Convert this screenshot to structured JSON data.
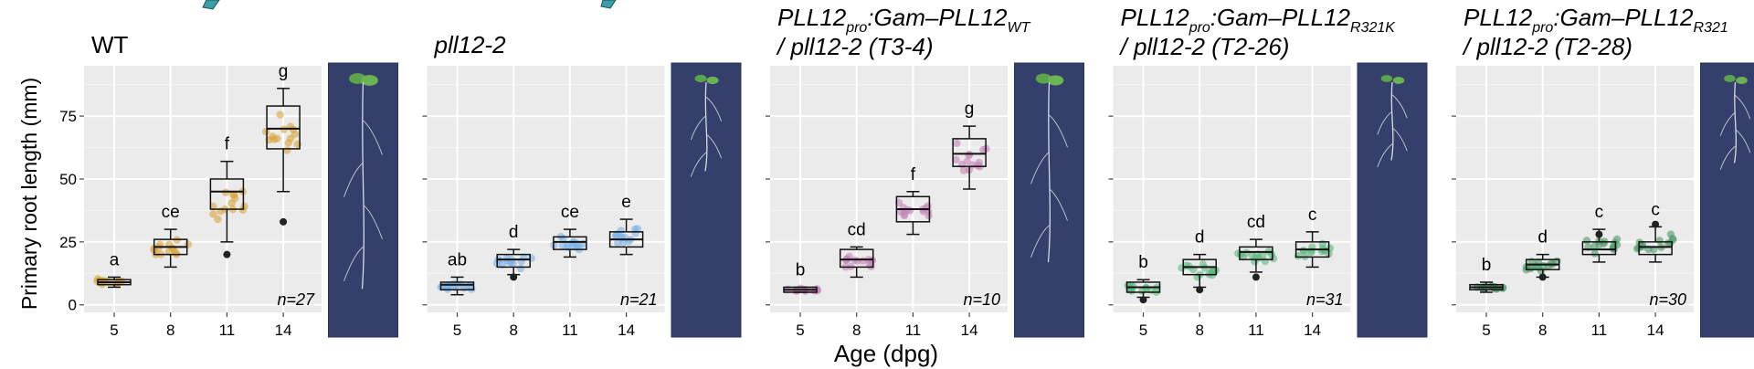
{
  "figure": {
    "y_axis_title": "Primary root length (mm)",
    "x_axis_title": "Age (dpg)"
  },
  "chart_data": [
    {
      "type": "box",
      "title_lines": [
        [
          {
            "t": "WT"
          }
        ]
      ],
      "categories": [
        "5",
        "8",
        "11",
        "14"
      ],
      "ylim": [
        -3,
        95
      ],
      "yticks": [
        "0",
        "25",
        "50",
        "75"
      ],
      "color": "#D9A53A",
      "boxes": [
        {
          "q1": 8,
          "med": 9,
          "q3": 10,
          "wlo": 7,
          "whi": 11,
          "letter": "a"
        },
        {
          "q1": 20,
          "med": 23,
          "q3": 26,
          "wlo": 15,
          "whi": 30,
          "letter": "ce"
        },
        {
          "q1": 38,
          "med": 45,
          "q3": 50,
          "wlo": 25,
          "whi": 57,
          "letter": "f"
        },
        {
          "q1": 62,
          "med": 70,
          "q3": 79,
          "wlo": 45,
          "whi": 86,
          "letter": "g"
        }
      ],
      "outliers": [
        [
          2,
          20
        ],
        [
          3,
          33
        ]
      ],
      "n_label": "n=27",
      "has_ylabels": true
    },
    {
      "type": "box",
      "title_lines": [
        [
          {
            "t": "pll12-2",
            "i": true
          }
        ]
      ],
      "categories": [
        "5",
        "8",
        "11",
        "14"
      ],
      "ylim": [
        -3,
        95
      ],
      "yticks": [
        "0",
        "25",
        "50",
        "75"
      ],
      "color": "#7FB2E5",
      "boxes": [
        {
          "q1": 6,
          "med": 8,
          "q3": 9,
          "wlo": 4,
          "whi": 11,
          "letter": "ab"
        },
        {
          "q1": 15,
          "med": 18,
          "q3": 20,
          "wlo": 12,
          "whi": 22,
          "letter": "d"
        },
        {
          "q1": 22,
          "med": 25,
          "q3": 27,
          "wlo": 19,
          "whi": 30,
          "letter": "ce"
        },
        {
          "q1": 23,
          "med": 26,
          "q3": 29,
          "wlo": 20,
          "whi": 34,
          "letter": "e"
        }
      ],
      "outliers": [
        [
          1,
          11
        ]
      ],
      "n_label": "n=21",
      "has_ylabels": false
    },
    {
      "type": "box",
      "title_lines": [
        [
          {
            "t": "PLL12",
            "i": true
          },
          {
            "t": "pro",
            "i": true,
            "sub": true
          },
          {
            "t": ":Gam–PLL12",
            "i": true
          },
          {
            "t": "WT",
            "i": true,
            "sub": true
          }
        ],
        [
          {
            "t": "/ pll12-2 (T3-4)",
            "i": true
          }
        ]
      ],
      "categories": [
        "5",
        "8",
        "11",
        "14"
      ],
      "ylim": [
        -3,
        95
      ],
      "yticks": [
        "0",
        "25",
        "50",
        "75"
      ],
      "color": "#C785B8",
      "boxes": [
        {
          "q1": 5,
          "med": 6,
          "q3": 7,
          "wlo": 5,
          "whi": 7,
          "letter": "b"
        },
        {
          "q1": 15,
          "med": 18,
          "q3": 22,
          "wlo": 11,
          "whi": 23,
          "letter": "cd"
        },
        {
          "q1": 33,
          "med": 38,
          "q3": 43,
          "wlo": 28,
          "whi": 45,
          "letter": "f"
        },
        {
          "q1": 55,
          "med": 60,
          "q3": 66,
          "wlo": 46,
          "whi": 71,
          "letter": "g"
        }
      ],
      "outliers": [],
      "n_label": "n=10",
      "has_ylabels": false
    },
    {
      "type": "box",
      "title_lines": [
        [
          {
            "t": "PLL12",
            "i": true
          },
          {
            "t": "pro",
            "i": true,
            "sub": true
          },
          {
            "t": ":Gam–PLL12",
            "i": true
          },
          {
            "t": "R321K",
            "i": true,
            "sub": true
          }
        ],
        [
          {
            "t": "/ pll12-2 (T2-26)",
            "i": true
          }
        ]
      ],
      "categories": [
        "5",
        "8",
        "11",
        "14"
      ],
      "ylim": [
        -3,
        95
      ],
      "yticks": [
        "0",
        "25",
        "50",
        "75"
      ],
      "color": "#5DB87E",
      "boxes": [
        {
          "q1": 5,
          "med": 7,
          "q3": 9,
          "wlo": 3,
          "whi": 10,
          "letter": "b"
        },
        {
          "q1": 12,
          "med": 15,
          "q3": 18,
          "wlo": 7,
          "whi": 20,
          "letter": "d"
        },
        {
          "q1": 18,
          "med": 21,
          "q3": 23,
          "wlo": 13,
          "whi": 26,
          "letter": "cd"
        },
        {
          "q1": 19,
          "med": 22,
          "q3": 25,
          "wlo": 15,
          "whi": 29,
          "letter": "c"
        }
      ],
      "outliers": [
        [
          0,
          2
        ],
        [
          1,
          6
        ],
        [
          2,
          11
        ]
      ],
      "n_label": "n=31",
      "has_ylabels": false
    },
    {
      "type": "box",
      "title_lines": [
        [
          {
            "t": "PLL12",
            "i": true
          },
          {
            "t": "pro",
            "i": true,
            "sub": true
          },
          {
            "t": ":Gam–PLL12",
            "i": true
          },
          {
            "t": "R321",
            "i": true,
            "sub": true
          }
        ],
        [
          {
            "t": "/ pll12-2 (T2-28)",
            "i": true
          }
        ]
      ],
      "categories": [
        "5",
        "8",
        "11",
        "14"
      ],
      "ylim": [
        -3,
        95
      ],
      "yticks": [
        "0",
        "25",
        "50",
        "75"
      ],
      "color": "#4E9A68",
      "boxes": [
        {
          "q1": 6,
          "med": 7,
          "q3": 8,
          "wlo": 5,
          "whi": 9,
          "letter": "b"
        },
        {
          "q1": 14,
          "med": 16,
          "q3": 18,
          "wlo": 11,
          "whi": 20,
          "letter": "d"
        },
        {
          "q1": 20,
          "med": 22,
          "q3": 25,
          "wlo": 17,
          "whi": 30,
          "letter": "c"
        },
        {
          "q1": 20,
          "med": 23,
          "q3": 25,
          "wlo": 17,
          "whi": 31,
          "letter": "c"
        }
      ],
      "outliers": [
        [
          1,
          11
        ],
        [
          2,
          28
        ],
        [
          3,
          32
        ]
      ],
      "n_label": "n=30",
      "has_ylabels": false
    }
  ]
}
